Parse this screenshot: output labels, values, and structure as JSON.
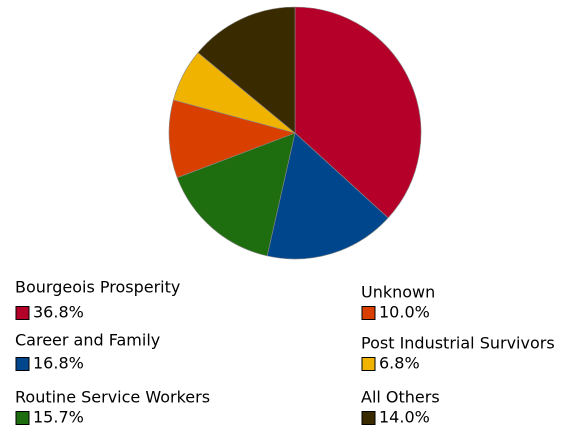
{
  "chart_data": {
    "type": "pie",
    "categories": [
      "Bourgeois Prosperity",
      "Career and Family",
      "Routine Service Workers",
      "Unknown",
      "Post Industrial Survivors",
      "All Others"
    ],
    "values": [
      36.8,
      16.8,
      15.7,
      10.0,
      6.8,
      14.0
    ],
    "value_labels": [
      "36.8%",
      "16.8%",
      "15.7%",
      "10.0%",
      "6.8%",
      "14.0%"
    ],
    "colors": [
      "#b5002a",
      "#00468c",
      "#1e6e10",
      "#d94000",
      "#f0b400",
      "#3a2a00"
    ]
  }
}
